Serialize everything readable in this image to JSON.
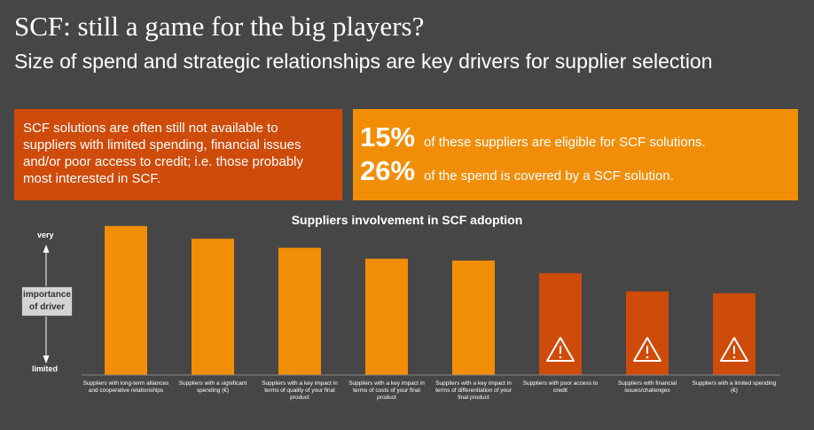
{
  "header": {
    "title": "SCF: still a game for the big players?",
    "subtitle": "Size of spend and strategic relationships are key drivers for supplier selection"
  },
  "callout_left": {
    "text": "SCF solutions are often still not available to suppliers with limited spending, financial issues and/or poor access to credit; i.e. those probably most interested in SCF."
  },
  "callout_right": {
    "stats": [
      {
        "value": "15%",
        "text": "of these suppliers are eligible for SCF solutions."
      },
      {
        "value": "26%",
        "text": "of the spend is covered by a SCF solution."
      }
    ]
  },
  "axis": {
    "top": "very",
    "middle": "importance of driver",
    "bottom": "limited"
  },
  "colors": {
    "orange": "#f28e05",
    "dark_orange": "#cf4b09",
    "background": "#464646"
  },
  "chart_data": {
    "type": "bar",
    "title": "Suppliers involvement in SCF adoption",
    "categories": [
      "Suppliers with long-term alliances and cooperative relationships",
      "Suppliers with a significant spending (€)",
      "Suppliers with a key impact in terms of quality of your final product",
      "Suppliers with a key impact in terms of costs of your final product",
      "Suppliers with a key impact in terms of differentiation of your final product",
      "Suppliers with poor access to credit",
      "Suppliers with financial issues/challenges",
      "Suppliers with a limited spending (€)"
    ],
    "values": [
      82,
      75,
      70,
      64,
      63,
      56,
      46,
      45
    ],
    "ylim": [
      0,
      100
    ],
    "highlight": [
      false,
      false,
      false,
      false,
      false,
      true,
      true,
      true
    ],
    "highlight_icon": "warning-icon",
    "grid": false
  }
}
